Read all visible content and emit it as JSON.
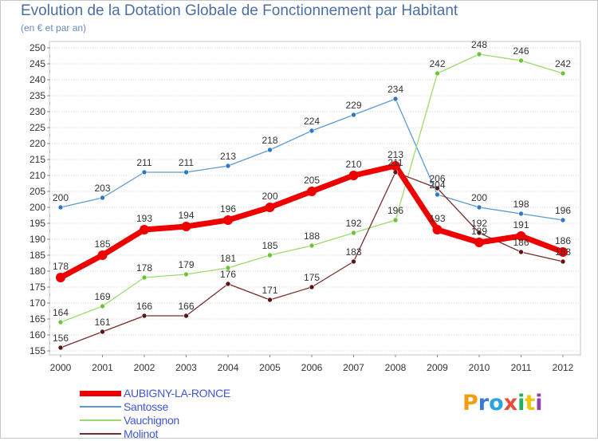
{
  "title": "Evolution de la Dotation Globale de Fonctionnement par Habitant",
  "subtitle": "(en € et par an)",
  "logo_text": "Proxiti",
  "colors": {
    "plot_border": "#c7c7c7",
    "grid": "#d9d9d9",
    "axis_text": "#333333",
    "legend_text": "#3f57d6",
    "title_text": "#4a6fa5"
  },
  "chart_data": {
    "type": "line",
    "x": [
      "2000",
      "2001",
      "2002",
      "2003",
      "2004",
      "2005",
      "2006",
      "2007",
      "2008",
      "2009",
      "2010",
      "2011",
      "2012"
    ],
    "ylim": [
      155,
      250
    ],
    "yticks": [
      155,
      160,
      165,
      170,
      175,
      180,
      185,
      190,
      195,
      200,
      205,
      210,
      215,
      220,
      225,
      230,
      235,
      240,
      245,
      250
    ],
    "grid": "horizontal",
    "legend_position": "bottom-left",
    "series": [
      {
        "name": "Santosse",
        "color": "#5b9bd5",
        "marker_color": "#2f78c4",
        "values": [
          200,
          203,
          211,
          211,
          213,
          218,
          224,
          229,
          234,
          204,
          200,
          198,
          196
        ],
        "labels": [
          "200",
          "203",
          "211",
          "211",
          "213",
          "218",
          "224",
          "229",
          "234",
          "204",
          "200",
          "198",
          "196"
        ]
      },
      {
        "name": "Vauchignon",
        "color": "#9bdb6e",
        "marker_color": "#6cc434",
        "values": [
          164,
          169,
          178,
          179,
          181,
          185,
          188,
          192,
          196,
          242,
          248,
          246,
          242
        ],
        "labels": [
          "164",
          "169",
          "178",
          "179",
          "181",
          "185",
          "188",
          "192",
          "196",
          "242",
          "248",
          "246",
          "242"
        ]
      },
      {
        "name": "Molinot",
        "color": "#7a2c2c",
        "marker_color": "#5a1414",
        "values": [
          156,
          161,
          166,
          166,
          176,
          171,
          175,
          183,
          211,
          206,
          192,
          186,
          183
        ],
        "labels": [
          "156",
          "161",
          "166",
          "166",
          "176",
          "171",
          "175",
          "183",
          "211",
          "206",
          "192",
          "186",
          "183"
        ]
      },
      {
        "name": "AUBIGNY-LA-RONCE",
        "color": "#ee0000",
        "marker_color": "#ee0000",
        "values": [
          178,
          185,
          193,
          194,
          196,
          200,
          205,
          210,
          213,
          193,
          189,
          191,
          186
        ],
        "labels": [
          "178",
          "185",
          "193",
          "194",
          "196",
          "200",
          "205",
          "210",
          "213",
          "193",
          "189",
          "191",
          "186"
        ]
      }
    ]
  },
  "legend": [
    {
      "label": "AUBIGNY-LA-RONCE",
      "color": "#ee0000"
    },
    {
      "label": "Santosse",
      "color": "#5b9bd5"
    },
    {
      "label": "Vauchignon",
      "color": "#9bdb6e"
    },
    {
      "label": "Molinot",
      "color": "#7a2c2c"
    }
  ]
}
